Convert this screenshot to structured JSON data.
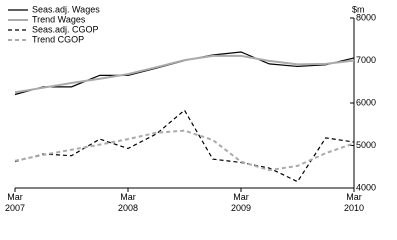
{
  "chart_data": {
    "type": "line",
    "y_label": "$m",
    "categories": [
      "Mar\n2007",
      null,
      null,
      null,
      "Mar\n2008",
      null,
      null,
      null,
      "Mar\n2009",
      null,
      null,
      null,
      "Mar\n2010"
    ],
    "series": [
      {
        "name": "Seas.adj. Wages",
        "color": "#000000",
        "style": "solid",
        "values": [
          6200,
          6380,
          6380,
          6650,
          6650,
          6820,
          7000,
          7130,
          7200,
          6920,
          6860,
          6900,
          7060
        ]
      },
      {
        "name": "Trend Wages",
        "color": "#aaaaaa",
        "style": "solid",
        "values": [
          6250,
          6360,
          6470,
          6570,
          6680,
          6840,
          7010,
          7110,
          7110,
          6990,
          6910,
          6920,
          7000
        ]
      },
      {
        "name": "Seas.adj. CGOP",
        "color": "#000000",
        "style": "dashed",
        "values": [
          4620,
          4800,
          4760,
          5150,
          4930,
          5270,
          5830,
          4680,
          4600,
          4470,
          4150,
          5180,
          5080
        ]
      },
      {
        "name": "Trend CGOP",
        "color": "#aaaaaa",
        "style": "dashed",
        "values": [
          4640,
          4780,
          4900,
          5020,
          5150,
          5300,
          5350,
          5130,
          4620,
          4420,
          4520,
          4820,
          5050
        ]
      }
    ],
    "ylim": [
      4000,
      8000
    ],
    "yticks": [
      4000,
      5000,
      6000,
      7000,
      8000
    ],
    "y_axis_side": "right",
    "legend": "top-left"
  }
}
